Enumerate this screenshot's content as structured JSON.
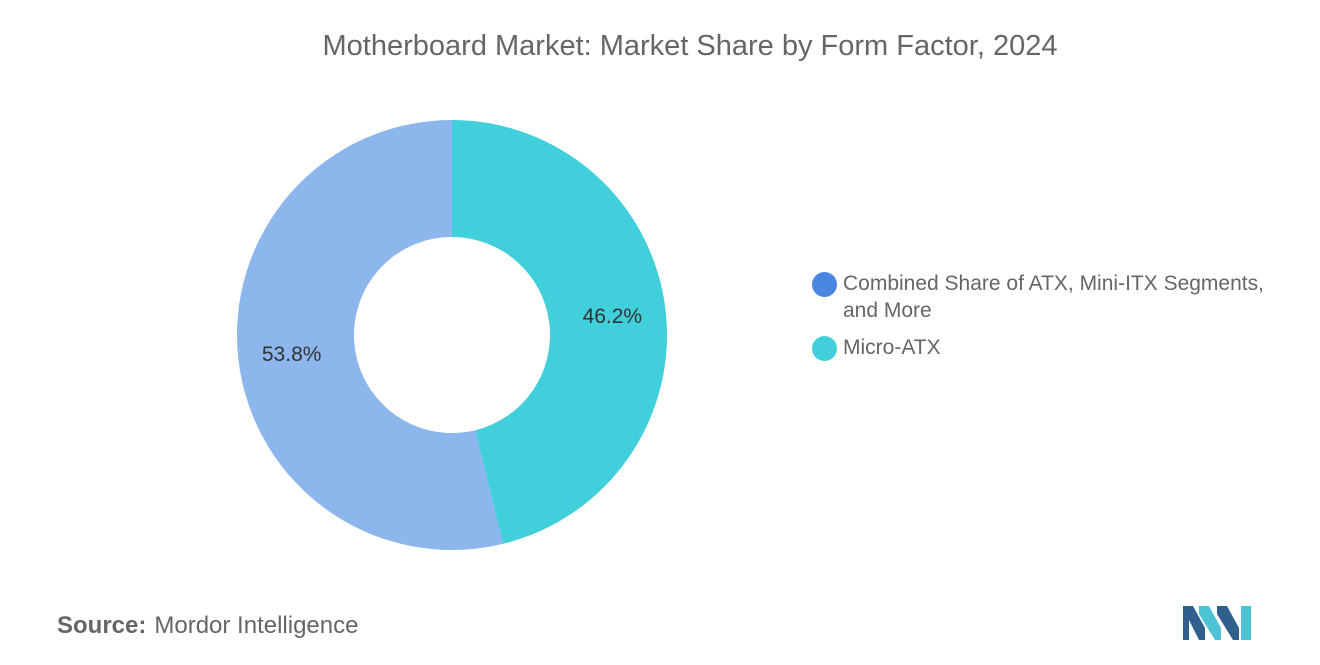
{
  "chart_data": {
    "type": "pie",
    "title": "Motherboard Market: Market Share by Form Factor, 2024",
    "donut": true,
    "series": [
      {
        "name": "Micro-ATX",
        "value": 46.2,
        "label": "46.2%",
        "color": "#41d0db"
      },
      {
        "name": "Combined Share of ATX, Mini-ITX Segments, and More",
        "value": 53.8,
        "label": "53.8%",
        "color": "#8db6ec"
      }
    ],
    "legend": {
      "placement": "right",
      "entries": [
        {
          "label": "Combined Share of ATX, Mini-ITX Segments, and More",
          "color": "#4a86e0"
        },
        {
          "label": "Micro-ATX",
          "color": "#41d0db"
        }
      ]
    }
  },
  "source": {
    "prefix": "Source:",
    "name": "Mordor Intelligence"
  },
  "logo": {
    "icon": "mordor-intelligence-logo-icon",
    "colors": [
      "#2f5f8c",
      "#4dc3d6"
    ]
  }
}
